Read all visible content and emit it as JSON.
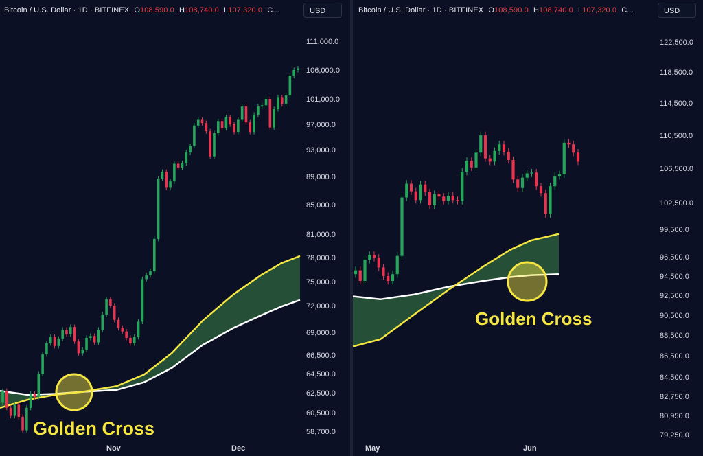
{
  "colors": {
    "background": "#0b1025",
    "up": "#26a65b",
    "down": "#e8344e",
    "ma_fast": "#f5e642",
    "ma_slow": "#ffffff",
    "fill": "#2a5a3a",
    "highlight": "#f5e642"
  },
  "chart_data": [
    {
      "type": "candlestick",
      "header": {
        "symbol": "Bitcoin / U.S. Dollar · 1D · BITFINEX",
        "open_label": "O",
        "open": "108,590.0",
        "high_label": "H",
        "high": "108,740.0",
        "low_label": "L",
        "low": "107,320.0",
        "close_label": "C..."
      },
      "currency": "USD",
      "y_ticks": [
        "111,000.0",
        "106,000.0",
        "101,000.0",
        "97,000.0",
        "93,000.0",
        "89,000.0",
        "85,000.0",
        "81,000.0",
        "78,000.0",
        "75,000.0",
        "72,000.0",
        "69,000.0",
        "66,500.0",
        "64,500.0",
        "62,500.0",
        "60,500.0",
        "58,700.0"
      ],
      "x_ticks": [
        "Nov",
        "Dec"
      ],
      "annotation": "Golden Cross",
      "candles": [
        [
          61500,
          62700
        ],
        [
          62700,
          61000
        ],
        [
          61000,
          60200
        ],
        [
          60200,
          61300
        ],
        [
          61300,
          60100
        ],
        [
          60100,
          58800
        ],
        [
          58800,
          61000
        ],
        [
          61000,
          62400
        ],
        [
          62400,
          62100
        ],
        [
          62100,
          64500
        ],
        [
          64500,
          66600
        ],
        [
          66600,
          67800
        ],
        [
          67800,
          68500
        ],
        [
          68500,
          67500
        ],
        [
          67500,
          68300
        ],
        [
          68300,
          69300
        ],
        [
          69300,
          68800
        ],
        [
          68800,
          69600
        ],
        [
          69600,
          68000
        ],
        [
          68000,
          66700
        ],
        [
          66700,
          67100
        ],
        [
          67100,
          68400
        ],
        [
          68400,
          68600
        ],
        [
          68600,
          67900
        ],
        [
          67900,
          69300
        ],
        [
          69300,
          71000
        ],
        [
          71000,
          72800
        ],
        [
          72800,
          72000
        ],
        [
          72000,
          70400
        ],
        [
          70400,
          69500
        ],
        [
          69500,
          69100
        ],
        [
          69100,
          68400
        ],
        [
          68400,
          67800
        ],
        [
          67800,
          68500
        ],
        [
          68500,
          70200
        ],
        [
          70200,
          75300
        ],
        [
          75300,
          75800
        ],
        [
          75800,
          76300
        ],
        [
          76300,
          80400
        ],
        [
          80400,
          88700
        ],
        [
          88700,
          89700
        ],
        [
          89700,
          87400
        ],
        [
          87400,
          88300
        ],
        [
          88300,
          90900
        ],
        [
          90900,
          90300
        ],
        [
          90300,
          91000
        ],
        [
          91000,
          92600
        ],
        [
          92600,
          93600
        ],
        [
          93600,
          96800
        ],
        [
          96800,
          97700
        ],
        [
          97700,
          97200
        ],
        [
          97200,
          95900
        ],
        [
          95900,
          92000
        ],
        [
          92000,
          95600
        ],
        [
          95600,
          97500
        ],
        [
          97500,
          96400
        ],
        [
          96400,
          98100
        ],
        [
          98100,
          97000
        ],
        [
          97000,
          95800
        ],
        [
          95800,
          97700
        ],
        [
          97700,
          99800
        ],
        [
          99800,
          97300
        ],
        [
          97300,
          95800
        ],
        [
          95800,
          98500
        ],
        [
          98500,
          99800
        ],
        [
          99800,
          100000
        ],
        [
          100000,
          101000
        ],
        [
          101000,
          96500
        ],
        [
          96500,
          99400
        ],
        [
          99400,
          101300
        ],
        [
          101300,
          100200
        ],
        [
          100200,
          101600
        ],
        [
          101600,
          105000
        ],
        [
          105000,
          106000
        ],
        [
          106000,
          106300
        ]
      ],
      "ma_fast": [
        [
          0,
          61000
        ],
        [
          40,
          61800
        ],
        [
          80,
          62300
        ],
        [
          120,
          62600
        ],
        [
          170,
          63200
        ],
        [
          210,
          64400
        ],
        [
          250,
          66700
        ],
        [
          295,
          70300
        ],
        [
          340,
          73400
        ],
        [
          380,
          75800
        ],
        [
          410,
          77300
        ],
        [
          437,
          78200
        ]
      ],
      "ma_slow": [
        [
          0,
          62700
        ],
        [
          40,
          62300
        ],
        [
          80,
          62400
        ],
        [
          120,
          62600
        ],
        [
          170,
          62800
        ],
        [
          210,
          63600
        ],
        [
          250,
          65100
        ],
        [
          295,
          67600
        ],
        [
          340,
          69500
        ],
        [
          380,
          70900
        ],
        [
          410,
          71900
        ],
        [
          437,
          72700
        ]
      ],
      "golden_cross": {
        "x_index_frac": 0.23,
        "value": 62600
      }
    },
    {
      "type": "candlestick",
      "header": {
        "symbol": "Bitcoin / U.S. Dollar · 1D · BITFINEX",
        "open_label": "O",
        "open": "108,590.0",
        "high_label": "H",
        "high": "108,740.0",
        "low_label": "L",
        "low": "107,320.0",
        "close_label": "C..."
      },
      "currency": "USD",
      "y_ticks": [
        "122,500.0",
        "118,500.0",
        "114,500.0",
        "110,500.0",
        "106,500.0",
        "102,500.0",
        "99,500.0",
        "96,500.0",
        "94,500.0",
        "92,500.0",
        "90,500.0",
        "88,500.0",
        "86,500.0",
        "84,500.0",
        "82,750.0",
        "80,950.0",
        "79,250.0"
      ],
      "x_ticks": [
        "May",
        "Jun"
      ],
      "annotation": "Golden Cross",
      "candles": [
        [
          94700,
          95100
        ],
        [
          95100,
          94000
        ],
        [
          94000,
          96200
        ],
        [
          96200,
          96700
        ],
        [
          96700,
          96400
        ],
        [
          96400,
          95400
        ],
        [
          95400,
          94500
        ],
        [
          94500,
          94000
        ],
        [
          94000,
          94700
        ],
        [
          94700,
          96600
        ],
        [
          96600,
          103100
        ],
        [
          103100,
          104700
        ],
        [
          104700,
          103800
        ],
        [
          103800,
          102800
        ],
        [
          102800,
          104600
        ],
        [
          104600,
          103700
        ],
        [
          103700,
          102200
        ],
        [
          102200,
          103500
        ],
        [
          103500,
          103200
        ],
        [
          103200,
          102700
        ],
        [
          102700,
          103300
        ],
        [
          103300,
          102800
        ],
        [
          102800,
          102700
        ],
        [
          102700,
          106100
        ],
        [
          106100,
          107400
        ],
        [
          107400,
          106600
        ],
        [
          106600,
          108400
        ],
        [
          108400,
          110500
        ],
        [
          110500,
          107700
        ],
        [
          107700,
          107300
        ],
        [
          107300,
          108600
        ],
        [
          108600,
          109400
        ],
        [
          109400,
          108500
        ],
        [
          108500,
          107500
        ],
        [
          107500,
          105200
        ],
        [
          105200,
          104200
        ],
        [
          104200,
          105400
        ],
        [
          105400,
          105900
        ],
        [
          105900,
          106000
        ],
        [
          106000,
          104400
        ],
        [
          104400,
          103600
        ],
        [
          103600,
          101200
        ],
        [
          101200,
          104400
        ],
        [
          104400,
          105600
        ],
        [
          105600,
          105800
        ],
        [
          105800,
          109600
        ],
        [
          109600,
          109400
        ],
        [
          109400,
          108400
        ],
        [
          108400,
          107300
        ]
      ],
      "ma_fast": [
        [
          0,
          87400
        ],
        [
          40,
          88100
        ],
        [
          90,
          90600
        ],
        [
          140,
          93100
        ],
        [
          190,
          95500
        ],
        [
          230,
          97300
        ],
        [
          260,
          98300
        ],
        [
          300,
          99000
        ]
      ],
      "ma_slow": [
        [
          0,
          92400
        ],
        [
          40,
          92100
        ],
        [
          90,
          92600
        ],
        [
          140,
          93400
        ],
        [
          190,
          94000
        ],
        [
          230,
          94400
        ],
        [
          260,
          94600
        ],
        [
          300,
          94700
        ]
      ],
      "golden_cross": {
        "x_index_frac": 0.84,
        "value": 94500
      }
    }
  ]
}
